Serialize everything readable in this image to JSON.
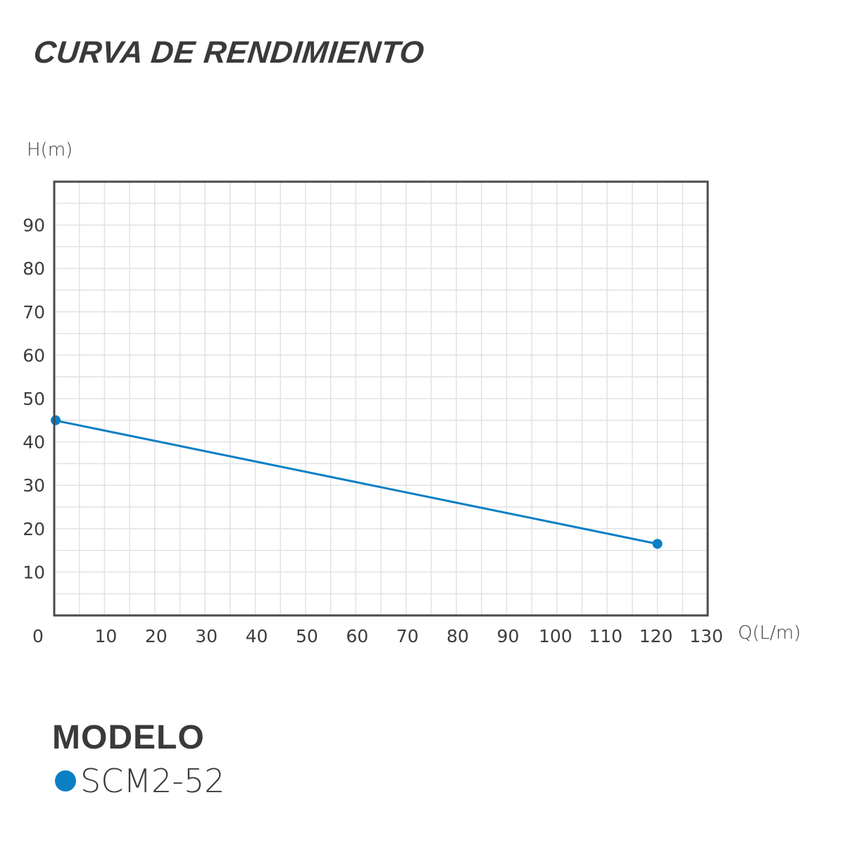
{
  "title": "CURVA DE RENDIMIENTO",
  "axes": {
    "y_label": "H(m)",
    "x_label": "Q(L/m)"
  },
  "legend": {
    "title": "MODELO",
    "items": [
      {
        "label": "SCM2-52",
        "color": "#0a7fc4"
      }
    ]
  },
  "colors": {
    "series": "#0a7fc4",
    "axis": "#4a4a4a",
    "grid": "#e2e2e2",
    "text": "#3d3d3d"
  },
  "chart_data": {
    "type": "line",
    "title": "CURVA DE RENDIMIENTO",
    "xlabel": "Q(L/m)",
    "ylabel": "H(m)",
    "xlim": [
      0,
      130
    ],
    "ylim": [
      0,
      100
    ],
    "x_ticks": [
      0,
      10,
      20,
      30,
      40,
      50,
      60,
      70,
      80,
      90,
      100,
      110,
      120,
      130
    ],
    "y_ticks": [
      10,
      20,
      30,
      40,
      50,
      60,
      70,
      80,
      90
    ],
    "grid": true,
    "grid_minor_step_x": 5,
    "grid_minor_step_y": 5,
    "legend_position": "bottom-left",
    "series": [
      {
        "name": "SCM2-52",
        "color": "#0a7fc4",
        "x": [
          0,
          120
        ],
        "y": [
          45,
          16.5
        ]
      }
    ]
  }
}
